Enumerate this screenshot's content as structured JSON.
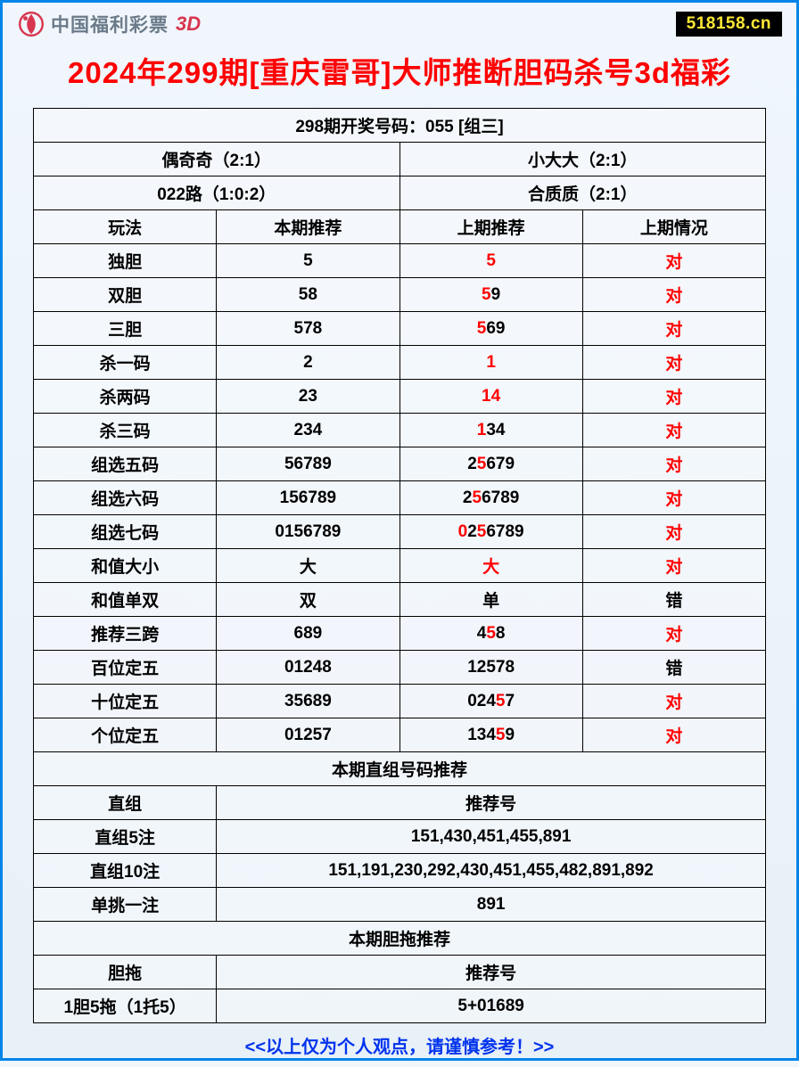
{
  "header": {
    "logo_text": "中国福利彩票",
    "logo_3d": "3D",
    "site": "518158.cn"
  },
  "title": "2024年299期[重庆雷哥]大师推断胆码杀号3d福彩",
  "top_header": "298期开奖号码：055 [组三]",
  "attr_row1_left": "偶奇奇（2:1）",
  "attr_row1_right": "小大大（2:1）",
  "attr_row2_left": "022路（1:0:2）",
  "attr_row2_right": "合质质（2:1）",
  "col_headers": [
    "玩法",
    "本期推荐",
    "上期推荐",
    "上期情况"
  ],
  "rows": [
    {
      "name": "独胆",
      "current": "5",
      "prev_parts": [
        {
          "t": "5",
          "r": true
        }
      ],
      "status": "对",
      "status_red": true
    },
    {
      "name": "双胆",
      "current": "58",
      "prev_parts": [
        {
          "t": "5",
          "r": true
        },
        {
          "t": "9",
          "r": false
        }
      ],
      "status": "对",
      "status_red": true
    },
    {
      "name": "三胆",
      "current": "578",
      "prev_parts": [
        {
          "t": "5",
          "r": true
        },
        {
          "t": "69",
          "r": false
        }
      ],
      "status": "对",
      "status_red": true
    },
    {
      "name": "杀一码",
      "current": "2",
      "prev_parts": [
        {
          "t": "1",
          "r": true
        }
      ],
      "status": "对",
      "status_red": true
    },
    {
      "name": "杀两码",
      "current": "23",
      "prev_parts": [
        {
          "t": "14",
          "r": true
        }
      ],
      "status": "对",
      "status_red": true
    },
    {
      "name": "杀三码",
      "current": "234",
      "prev_parts": [
        {
          "t": "1",
          "r": true
        },
        {
          "t": "34",
          "r": false
        }
      ],
      "status": "对",
      "status_red": true
    },
    {
      "name": "组选五码",
      "current": "56789",
      "prev_parts": [
        {
          "t": "2",
          "r": false
        },
        {
          "t": "5",
          "r": true
        },
        {
          "t": "679",
          "r": false
        }
      ],
      "status": "对",
      "status_red": true
    },
    {
      "name": "组选六码",
      "current": "156789",
      "prev_parts": [
        {
          "t": "2",
          "r": false
        },
        {
          "t": "5",
          "r": true
        },
        {
          "t": "6789",
          "r": false
        }
      ],
      "status": "对",
      "status_red": true
    },
    {
      "name": "组选七码",
      "current": "0156789",
      "prev_parts": [
        {
          "t": "0",
          "r": true
        },
        {
          "t": "2",
          "r": false
        },
        {
          "t": "5",
          "r": true
        },
        {
          "t": "6789",
          "r": false
        }
      ],
      "status": "对",
      "status_red": true
    },
    {
      "name": "和值大小",
      "current": "大",
      "prev_parts": [
        {
          "t": "大",
          "r": true
        }
      ],
      "status": "对",
      "status_red": true
    },
    {
      "name": "和值单双",
      "current": "双",
      "prev_parts": [
        {
          "t": "单",
          "r": false
        }
      ],
      "status": "错",
      "status_red": false
    },
    {
      "name": "推荐三跨",
      "current": "689",
      "prev_parts": [
        {
          "t": "4",
          "r": false
        },
        {
          "t": "5",
          "r": true
        },
        {
          "t": "8",
          "r": false
        }
      ],
      "status": "对",
      "status_red": true
    },
    {
      "name": "百位定五",
      "current": "01248",
      "prev_parts": [
        {
          "t": "12578",
          "r": false
        }
      ],
      "status": "错",
      "status_red": false
    },
    {
      "name": "十位定五",
      "current": "35689",
      "prev_parts": [
        {
          "t": "024",
          "r": false
        },
        {
          "t": "5",
          "r": true
        },
        {
          "t": "7",
          "r": false
        }
      ],
      "status": "对",
      "status_red": true
    },
    {
      "name": "个位定五",
      "current": "01257",
      "prev_parts": [
        {
          "t": "134",
          "r": false
        },
        {
          "t": "5",
          "r": true
        },
        {
          "t": "9",
          "r": false
        }
      ],
      "status": "对",
      "status_red": true
    }
  ],
  "section2_header": "本期直组号码推荐",
  "section2_label": "直组",
  "section2_value_label": "推荐号",
  "section2_rows": [
    {
      "name": "直组5注",
      "value": "151,430,451,455,891"
    },
    {
      "name": "直组10注",
      "value": "151,191,230,292,430,451,455,482,891,892"
    },
    {
      "name": "单挑一注",
      "value": "891"
    }
  ],
  "section3_header": "本期胆拖推荐",
  "section3_label": "胆拖",
  "section3_value_label": "推荐号",
  "section3_rows": [
    {
      "name": "1胆5拖（1托5）",
      "value": "5+01689"
    }
  ],
  "footer": "<<以上仅为个人观点，请谨慎参考！>>"
}
